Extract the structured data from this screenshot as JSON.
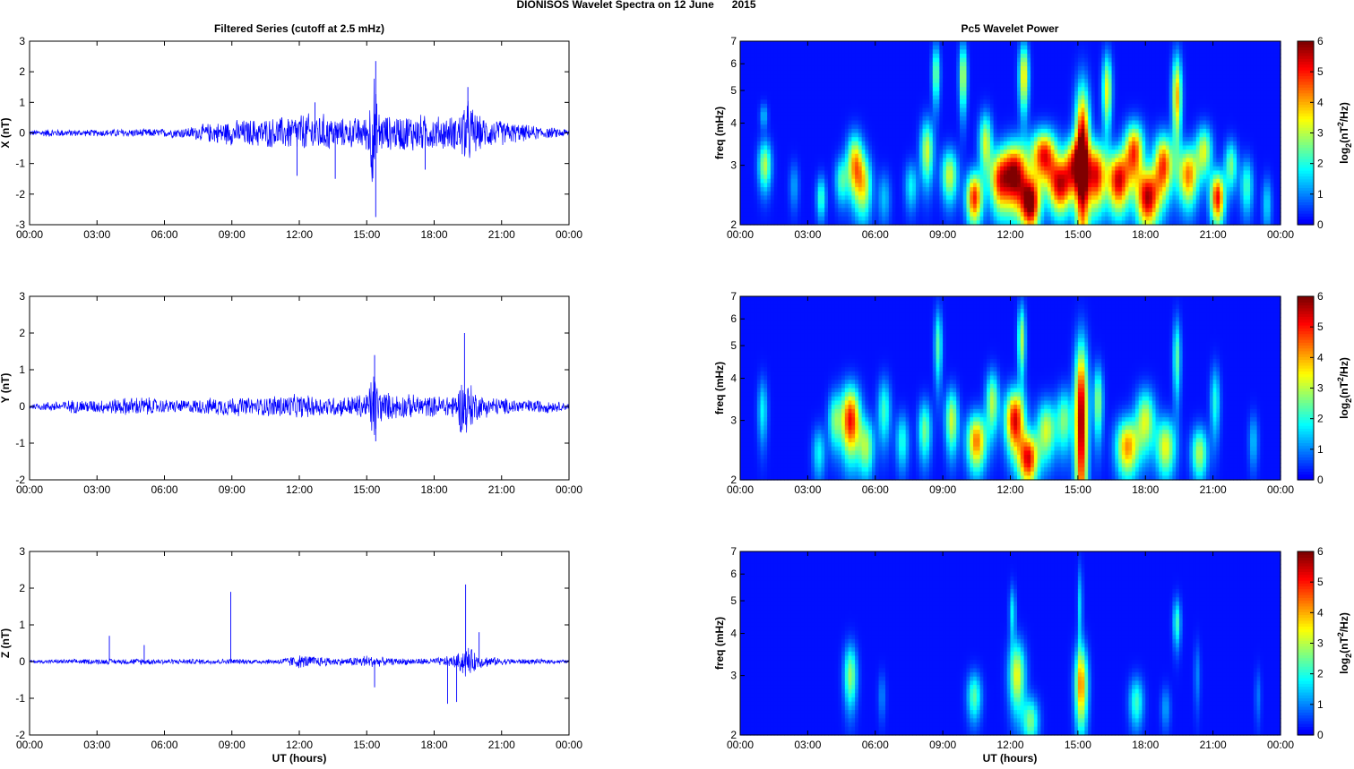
{
  "figure": {
    "suptitle": "DIONISOS Wavelet Spectra on 12 June      2015",
    "left_title": "Filtered Series (cutoff at 2.5 mHz)",
    "right_title": "Pc5 Wavelet Power",
    "xlabel": "UT (hours)",
    "freq_label": "freq (mHz)",
    "colorbar_label": "log2(nT^2/Hz)",
    "colorbar_label_main": "log",
    "colorbar_label_sub": "2",
    "colorbar_label_rest": "(nT",
    "colorbar_label_sup": "2",
    "colorbar_label_end": "/Hz)"
  },
  "colors": {
    "series_line": "#0000ff",
    "colormap": "jet",
    "axes": "#000000"
  },
  "chart_data": [
    {
      "type": "line",
      "id": "filtered-x",
      "ylabel": "X (nT)",
      "x_ticks": [
        "00:00",
        "03:00",
        "06:00",
        "09:00",
        "12:00",
        "15:00",
        "18:00",
        "21:00",
        "00:00"
      ],
      "xlim_hours": [
        0,
        24
      ],
      "ylim": [
        -3,
        3
      ],
      "y_ticks": [
        "3",
        "2",
        "1",
        "0",
        "-1",
        "-2",
        "-3"
      ],
      "envelope": {
        "hours": [
          0,
          1,
          2,
          3,
          4,
          5,
          6,
          7,
          8,
          9,
          10,
          11,
          12,
          13,
          14,
          15,
          15.3,
          15.5,
          16,
          17,
          18,
          19,
          19.4,
          20,
          21,
          22,
          23,
          24
        ],
        "amplitude": [
          0.1,
          0.15,
          0.12,
          0.12,
          0.15,
          0.15,
          0.15,
          0.2,
          0.35,
          0.45,
          0.5,
          0.55,
          0.7,
          0.7,
          0.5,
          0.6,
          2.3,
          0.8,
          0.6,
          0.7,
          0.6,
          0.6,
          1.3,
          0.6,
          0.45,
          0.3,
          0.2,
          0.15
        ]
      },
      "spikes": [
        {
          "hour": 15.4,
          "value": 2.35
        },
        {
          "hour": 15.4,
          "value": -2.75
        },
        {
          "hour": 12.7,
          "value": 1.0
        },
        {
          "hour": 13.6,
          "value": -1.5
        },
        {
          "hour": 19.5,
          "value": 1.5
        },
        {
          "hour": 17.6,
          "value": -1.2
        },
        {
          "hour": 11.9,
          "value": -1.4
        }
      ]
    },
    {
      "type": "line",
      "id": "filtered-y",
      "ylabel": "Y (nT)",
      "x_ticks": [
        "00:00",
        "03:00",
        "06:00",
        "09:00",
        "12:00",
        "15:00",
        "18:00",
        "21:00",
        "00:00"
      ],
      "xlim_hours": [
        0,
        24
      ],
      "ylim": [
        -2,
        3
      ],
      "y_ticks": [
        "3",
        "2",
        "1",
        "0",
        "-1",
        "-2"
      ],
      "envelope": {
        "hours": [
          0,
          1,
          2,
          3,
          4,
          5,
          6,
          7,
          8,
          9,
          10,
          11,
          12,
          13,
          14,
          15,
          15.3,
          15.6,
          16,
          17,
          18,
          19,
          19.3,
          20,
          21,
          22,
          23,
          24
        ],
        "amplitude": [
          0.08,
          0.15,
          0.2,
          0.2,
          0.25,
          0.3,
          0.2,
          0.2,
          0.25,
          0.3,
          0.25,
          0.35,
          0.35,
          0.3,
          0.3,
          0.4,
          1.2,
          0.5,
          0.4,
          0.35,
          0.3,
          0.4,
          1.0,
          0.35,
          0.25,
          0.2,
          0.2,
          0.1
        ]
      },
      "spikes": [
        {
          "hour": 15.35,
          "value": 1.4
        },
        {
          "hour": 15.4,
          "value": -0.95
        },
        {
          "hour": 19.35,
          "value": 2.0
        },
        {
          "hour": 19.4,
          "value": -0.5
        }
      ]
    },
    {
      "type": "line",
      "id": "filtered-z",
      "ylabel": "Z (nT)",
      "x_ticks": [
        "00:00",
        "03:00",
        "06:00",
        "09:00",
        "12:00",
        "15:00",
        "18:00",
        "21:00",
        "00:00"
      ],
      "xlim_hours": [
        0,
        24
      ],
      "ylim": [
        -2,
        3
      ],
      "y_ticks": [
        "3",
        "2",
        "1",
        "0",
        "-1",
        "-2"
      ],
      "envelope": {
        "hours": [
          0,
          1,
          2,
          3,
          4,
          5,
          6,
          7,
          8,
          9,
          10,
          11,
          12,
          13,
          14,
          15,
          16,
          17,
          18,
          19,
          19.4,
          20,
          21,
          22,
          23,
          24
        ],
        "amplitude": [
          0.05,
          0.06,
          0.07,
          0.08,
          0.08,
          0.1,
          0.08,
          0.08,
          0.08,
          0.08,
          0.07,
          0.08,
          0.2,
          0.15,
          0.1,
          0.2,
          0.1,
          0.1,
          0.1,
          0.2,
          0.5,
          0.2,
          0.1,
          0.08,
          0.07,
          0.05
        ]
      },
      "spikes": [
        {
          "hour": 3.55,
          "value": 0.7
        },
        {
          "hour": 5.1,
          "value": 0.45
        },
        {
          "hour": 8.95,
          "value": 1.9
        },
        {
          "hour": 15.35,
          "value": -0.7
        },
        {
          "hour": 18.6,
          "value": -1.15
        },
        {
          "hour": 19.0,
          "value": -1.1
        },
        {
          "hour": 19.4,
          "value": 2.1
        },
        {
          "hour": 20.0,
          "value": 0.8
        }
      ]
    },
    {
      "type": "heatmap",
      "id": "wavelet-x",
      "ylabel": "freq (mHz)",
      "x_ticks": [
        "00:00",
        "03:00",
        "06:00",
        "09:00",
        "12:00",
        "15:00",
        "18:00",
        "21:00",
        "00:00"
      ],
      "xlim_hours": [
        0,
        24
      ],
      "y_scale": "log",
      "ylim_mHz": [
        2,
        7
      ],
      "y_ticks": [
        "7",
        "6",
        "5",
        "4",
        "3",
        "2"
      ],
      "colorbar_ticks": [
        "6",
        "5",
        "4",
        "3",
        "2",
        "1",
        "0"
      ],
      "clim": [
        0,
        6
      ],
      "background_level": 0.2,
      "blobs": [
        {
          "hour": 1.1,
          "f": 3.0,
          "wh": 0.2,
          "wf": 0.35,
          "v": 2.8
        },
        {
          "hour": 1.05,
          "f": 4.2,
          "wh": 0.12,
          "wf": 0.25,
          "v": 1.2
        },
        {
          "hour": 2.4,
          "f": 2.6,
          "wh": 0.15,
          "wf": 0.3,
          "v": 1.0
        },
        {
          "hour": 3.6,
          "f": 2.4,
          "wh": 0.15,
          "wf": 0.25,
          "v": 2.0
        },
        {
          "hour": 4.5,
          "f": 2.7,
          "wh": 0.2,
          "wf": 0.3,
          "v": 2.0
        },
        {
          "hour": 5.1,
          "f": 3.0,
          "wh": 0.25,
          "wf": 0.45,
          "v": 3.8
        },
        {
          "hour": 5.5,
          "f": 2.6,
          "wh": 0.25,
          "wf": 0.4,
          "v": 2.8
        },
        {
          "hour": 6.4,
          "f": 2.4,
          "wh": 0.2,
          "wf": 0.3,
          "v": 1.2
        },
        {
          "hour": 7.6,
          "f": 2.6,
          "wh": 0.2,
          "wf": 0.3,
          "v": 1.6
        },
        {
          "hour": 8.3,
          "f": 3.3,
          "wh": 0.2,
          "wf": 0.5,
          "v": 3.0
        },
        {
          "hour": 8.7,
          "f": 5.6,
          "wh": 0.12,
          "wf": 0.8,
          "v": 2.5
        },
        {
          "hour": 9.3,
          "f": 2.8,
          "wh": 0.25,
          "wf": 0.35,
          "v": 3.0
        },
        {
          "hour": 9.9,
          "f": 5.5,
          "wh": 0.12,
          "wf": 0.9,
          "v": 3.0
        },
        {
          "hour": 10.4,
          "f": 2.4,
          "wh": 0.25,
          "wf": 0.3,
          "v": 4.8
        },
        {
          "hour": 10.9,
          "f": 3.5,
          "wh": 0.2,
          "wf": 0.5,
          "v": 3.0
        },
        {
          "hour": 11.5,
          "f": 2.7,
          "wh": 0.3,
          "wf": 0.4,
          "v": 3.8
        },
        {
          "hour": 12.2,
          "f": 2.8,
          "wh": 0.4,
          "wf": 0.45,
          "v": 5.8
        },
        {
          "hour": 12.6,
          "f": 5.5,
          "wh": 0.15,
          "wf": 0.9,
          "v": 3.5
        },
        {
          "hour": 12.9,
          "f": 2.3,
          "wh": 0.3,
          "wf": 0.3,
          "v": 5.6
        },
        {
          "hour": 13.5,
          "f": 3.2,
          "wh": 0.4,
          "wf": 0.4,
          "v": 5.0
        },
        {
          "hour": 14.2,
          "f": 2.6,
          "wh": 0.35,
          "wf": 0.35,
          "v": 4.8
        },
        {
          "hour": 14.8,
          "f": 3.0,
          "wh": 0.3,
          "wf": 0.4,
          "v": 4.0
        },
        {
          "hour": 15.2,
          "f": 3.2,
          "wh": 0.22,
          "wf": 1.2,
          "v": 6.0
        },
        {
          "hour": 15.8,
          "f": 2.8,
          "wh": 0.3,
          "wf": 0.45,
          "v": 5.0
        },
        {
          "hour": 16.3,
          "f": 5.0,
          "wh": 0.15,
          "wf": 0.9,
          "v": 3.2
        },
        {
          "hour": 16.8,
          "f": 2.7,
          "wh": 0.35,
          "wf": 0.4,
          "v": 5.2
        },
        {
          "hour": 17.5,
          "f": 3.3,
          "wh": 0.3,
          "wf": 0.45,
          "v": 4.5
        },
        {
          "hour": 18.1,
          "f": 2.4,
          "wh": 0.35,
          "wf": 0.35,
          "v": 5.4
        },
        {
          "hour": 18.8,
          "f": 3.0,
          "wh": 0.3,
          "wf": 0.45,
          "v": 4.6
        },
        {
          "hour": 19.4,
          "f": 4.8,
          "wh": 0.15,
          "wf": 1.0,
          "v": 3.8
        },
        {
          "hour": 19.9,
          "f": 2.8,
          "wh": 0.3,
          "wf": 0.4,
          "v": 4.2
        },
        {
          "hour": 20.6,
          "f": 3.3,
          "wh": 0.25,
          "wf": 0.4,
          "v": 3.0
        },
        {
          "hour": 21.2,
          "f": 2.4,
          "wh": 0.22,
          "wf": 0.3,
          "v": 5.0
        },
        {
          "hour": 21.8,
          "f": 3.0,
          "wh": 0.2,
          "wf": 0.35,
          "v": 2.4
        },
        {
          "hour": 22.5,
          "f": 2.6,
          "wh": 0.2,
          "wf": 0.35,
          "v": 2.0
        },
        {
          "hour": 23.4,
          "f": 2.3,
          "wh": 0.15,
          "wf": 0.3,
          "v": 1.4
        }
      ]
    },
    {
      "type": "heatmap",
      "id": "wavelet-y",
      "ylabel": "freq (mHz)",
      "x_ticks": [
        "00:00",
        "03:00",
        "06:00",
        "09:00",
        "12:00",
        "15:00",
        "18:00",
        "21:00",
        "00:00"
      ],
      "xlim_hours": [
        0,
        24
      ],
      "y_scale": "log",
      "ylim_mHz": [
        2,
        7
      ],
      "y_ticks": [
        "7",
        "6",
        "5",
        "4",
        "3",
        "2"
      ],
      "colorbar_ticks": [
        "6",
        "5",
        "4",
        "3",
        "2",
        "1",
        "0"
      ],
      "clim": [
        0,
        6
      ],
      "background_level": 0.2,
      "blobs": [
        {
          "hour": 1.0,
          "f": 3.2,
          "wh": 0.15,
          "wf": 0.5,
          "v": 1.6
        },
        {
          "hour": 3.5,
          "f": 2.4,
          "wh": 0.2,
          "wf": 0.3,
          "v": 1.6
        },
        {
          "hour": 4.2,
          "f": 3.0,
          "wh": 0.2,
          "wf": 0.4,
          "v": 2.2
        },
        {
          "hour": 4.9,
          "f": 3.0,
          "wh": 0.3,
          "wf": 0.5,
          "v": 5.0
        },
        {
          "hour": 5.6,
          "f": 2.5,
          "wh": 0.25,
          "wf": 0.35,
          "v": 2.6
        },
        {
          "hour": 6.4,
          "f": 3.2,
          "wh": 0.2,
          "wf": 0.5,
          "v": 2.0
        },
        {
          "hour": 7.2,
          "f": 2.6,
          "wh": 0.2,
          "wf": 0.35,
          "v": 1.8
        },
        {
          "hour": 8.2,
          "f": 2.8,
          "wh": 0.2,
          "wf": 0.4,
          "v": 2.4
        },
        {
          "hour": 8.8,
          "f": 5.0,
          "wh": 0.12,
          "wf": 0.9,
          "v": 2.2
        },
        {
          "hour": 9.4,
          "f": 3.0,
          "wh": 0.2,
          "wf": 0.45,
          "v": 3.0
        },
        {
          "hour": 10.5,
          "f": 2.6,
          "wh": 0.3,
          "wf": 0.35,
          "v": 4.2
        },
        {
          "hour": 11.2,
          "f": 3.4,
          "wh": 0.2,
          "wf": 0.5,
          "v": 2.8
        },
        {
          "hour": 12.2,
          "f": 3.0,
          "wh": 0.3,
          "wf": 0.45,
          "v": 5.2
        },
        {
          "hour": 12.8,
          "f": 2.3,
          "wh": 0.3,
          "wf": 0.3,
          "v": 5.0
        },
        {
          "hour": 12.5,
          "f": 5.2,
          "wh": 0.12,
          "wf": 0.9,
          "v": 2.8
        },
        {
          "hour": 13.6,
          "f": 2.8,
          "wh": 0.3,
          "wf": 0.4,
          "v": 3.0
        },
        {
          "hour": 14.4,
          "f": 3.0,
          "wh": 0.25,
          "wf": 0.45,
          "v": 2.4
        },
        {
          "hour": 15.15,
          "f": 3.0,
          "wh": 0.2,
          "wf": 1.3,
          "v": 5.8
        },
        {
          "hour": 15.9,
          "f": 3.4,
          "wh": 0.15,
          "wf": 0.6,
          "v": 2.6
        },
        {
          "hour": 17.2,
          "f": 2.5,
          "wh": 0.35,
          "wf": 0.35,
          "v": 4.0
        },
        {
          "hour": 18.0,
          "f": 3.0,
          "wh": 0.3,
          "wf": 0.45,
          "v": 3.0
        },
        {
          "hour": 18.9,
          "f": 2.5,
          "wh": 0.3,
          "wf": 0.35,
          "v": 3.2
        },
        {
          "hour": 19.4,
          "f": 4.6,
          "wh": 0.12,
          "wf": 0.9,
          "v": 2.2
        },
        {
          "hour": 20.4,
          "f": 2.4,
          "wh": 0.25,
          "wf": 0.3,
          "v": 2.8
        },
        {
          "hour": 21.1,
          "f": 3.4,
          "wh": 0.15,
          "wf": 0.6,
          "v": 1.8
        },
        {
          "hour": 22.8,
          "f": 2.6,
          "wh": 0.15,
          "wf": 0.35,
          "v": 1.2
        }
      ]
    },
    {
      "type": "heatmap",
      "id": "wavelet-z",
      "ylabel": "freq (mHz)",
      "x_ticks": [
        "00:00",
        "03:00",
        "06:00",
        "09:00",
        "12:00",
        "15:00",
        "18:00",
        "21:00",
        "00:00"
      ],
      "xlim_hours": [
        0,
        24
      ],
      "y_scale": "log",
      "ylim_mHz": [
        2,
        7
      ],
      "y_ticks": [
        "7",
        "6",
        "5",
        "4",
        "3",
        "2"
      ],
      "colorbar_ticks": [
        "6",
        "5",
        "4",
        "3",
        "2",
        "1",
        "0"
      ],
      "clim": [
        0,
        6
      ],
      "background_level": 0.2,
      "blobs": [
        {
          "hour": 4.9,
          "f": 3.0,
          "wh": 0.2,
          "wf": 0.45,
          "v": 2.6
        },
        {
          "hour": 6.3,
          "f": 2.6,
          "wh": 0.12,
          "wf": 0.3,
          "v": 0.8
        },
        {
          "hour": 10.4,
          "f": 2.6,
          "wh": 0.22,
          "wf": 0.3,
          "v": 2.2
        },
        {
          "hour": 12.3,
          "f": 3.0,
          "wh": 0.25,
          "wf": 0.5,
          "v": 3.2
        },
        {
          "hour": 12.9,
          "f": 2.2,
          "wh": 0.25,
          "wf": 0.25,
          "v": 2.4
        },
        {
          "hour": 12.1,
          "f": 4.6,
          "wh": 0.1,
          "wf": 0.6,
          "v": 1.6
        },
        {
          "hour": 15.15,
          "f": 2.8,
          "wh": 0.2,
          "wf": 0.55,
          "v": 4.0
        },
        {
          "hour": 15.1,
          "f": 4.8,
          "wh": 0.08,
          "wf": 1.0,
          "v": 1.4
        },
        {
          "hour": 17.6,
          "f": 2.5,
          "wh": 0.22,
          "wf": 0.3,
          "v": 2.0
        },
        {
          "hour": 18.9,
          "f": 2.4,
          "wh": 0.15,
          "wf": 0.25,
          "v": 1.0
        },
        {
          "hour": 19.4,
          "f": 4.3,
          "wh": 0.12,
          "wf": 0.5,
          "v": 2.0
        },
        {
          "hour": 20.3,
          "f": 3.0,
          "wh": 0.1,
          "wf": 0.5,
          "v": 0.8
        },
        {
          "hour": 23.0,
          "f": 2.6,
          "wh": 0.1,
          "wf": 0.35,
          "v": 0.7
        }
      ]
    }
  ]
}
